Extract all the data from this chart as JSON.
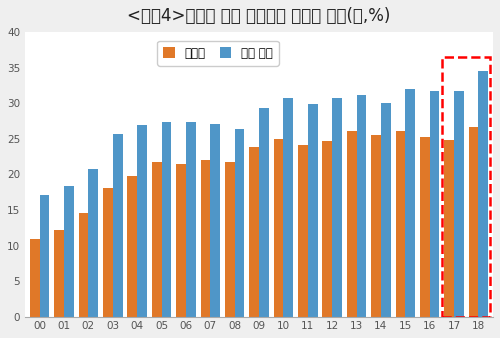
{
  "title": "<그림4>한국의 전체 수쳙에서 대중국 비중(년,%)",
  "years": [
    "00",
    "01",
    "02",
    "03",
    "04",
    "05",
    "06",
    "07",
    "08",
    "09",
    "10",
    "11",
    "12",
    "13",
    "14",
    "15",
    "16",
    "17",
    "18"
  ],
  "china": [
    10.9,
    12.2,
    14.6,
    18.1,
    19.8,
    21.8,
    21.5,
    22.0,
    21.7,
    23.9,
    25.0,
    24.1,
    24.7,
    26.1,
    25.5,
    26.1,
    25.2,
    24.9,
    26.7
  ],
  "hongkong": [
    17.1,
    18.4,
    20.8,
    25.7,
    26.9,
    27.4,
    27.4,
    27.1,
    26.4,
    29.3,
    30.7,
    29.9,
    30.7,
    31.1,
    30.1,
    32.0,
    31.7,
    31.7,
    34.5
  ],
  "china_color": "#E07828",
  "hk_color": "#4F96C8",
  "plot_bg_color": "#FFFFFF",
  "fig_bg_color": "#EFEFEF",
  "legend_labels": [
    "대중국",
    "홍콩 포함"
  ],
  "ylim": [
    0,
    40
  ],
  "yticks": [
    0,
    5,
    10,
    15,
    20,
    25,
    30,
    35,
    40
  ],
  "bar_width": 0.4,
  "title_fontsize": 12
}
